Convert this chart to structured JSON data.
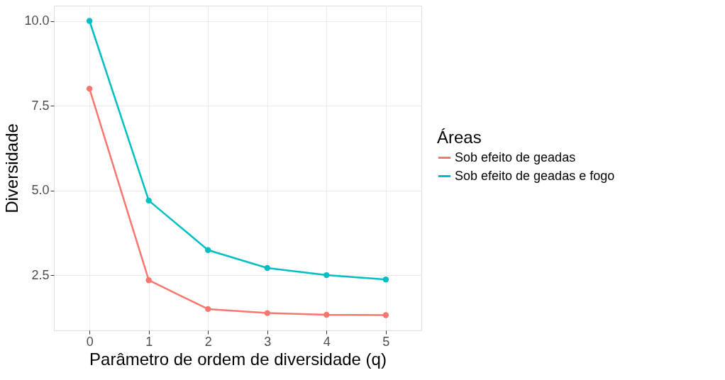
{
  "chart_data": {
    "type": "line",
    "xlabel": "Parâmetro de ordem de diversidade (q)",
    "ylabel": "Diversidade",
    "legend_title": "Áreas",
    "x": [
      0,
      1,
      2,
      3,
      4,
      5
    ],
    "series": [
      {
        "name": "Sob efeito de geadas",
        "color": "#f8766d",
        "values": [
          8.0,
          2.35,
          1.5,
          1.38,
          1.33,
          1.32
        ]
      },
      {
        "name": "Sob efeito de geadas e fogo",
        "color": "#00bfc4",
        "values": [
          10.0,
          4.7,
          3.24,
          2.71,
          2.5,
          2.37
        ]
      }
    ],
    "xlim": [
      -0.6,
      5.6
    ],
    "xticks": [
      0,
      1,
      2,
      3,
      4,
      5
    ],
    "ylim": [
      0.87,
      10.45
    ],
    "yticks": [
      {
        "value": 2.5,
        "label": "2.5"
      },
      {
        "value": 5,
        "label": "5.0"
      },
      {
        "value": 7.5,
        "label": "7.5"
      },
      {
        "value": 10,
        "label": "10.0"
      }
    ],
    "grid": true,
    "legend": "right",
    "marker": "circle",
    "line_style": "solid"
  }
}
